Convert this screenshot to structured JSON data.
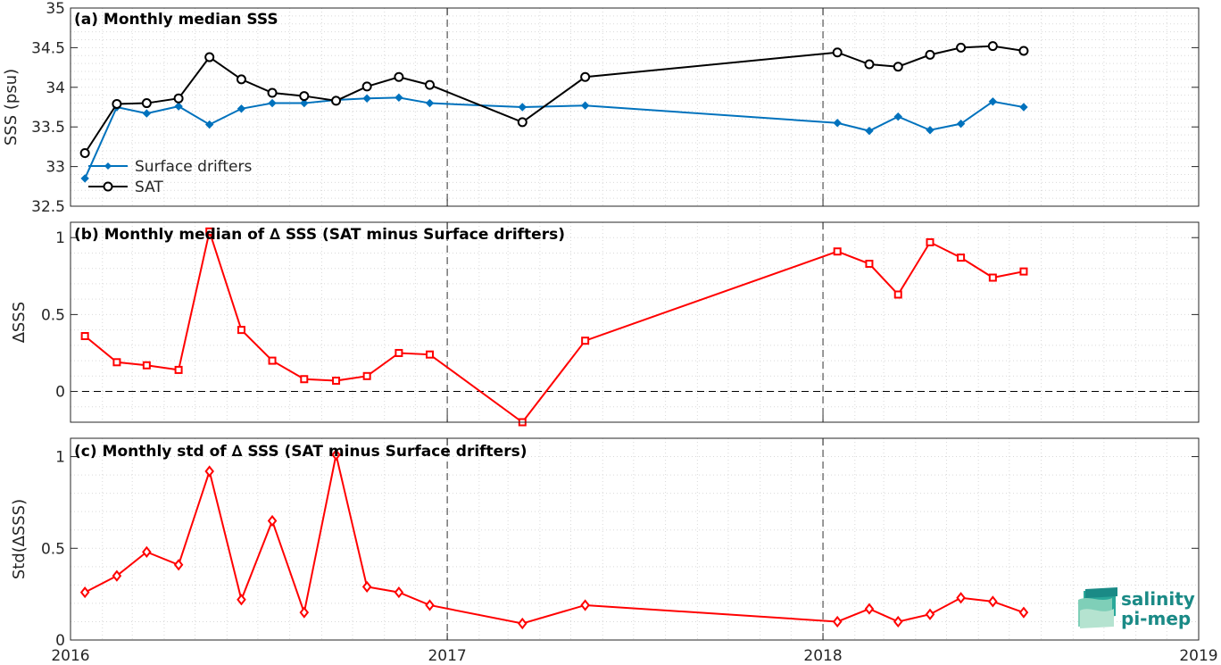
{
  "colors": {
    "drifters": "#0072BD",
    "sat": "#000000",
    "delta": "#FF0000",
    "grid": "#d9d9d9",
    "logo": "#1a8a86"
  },
  "x_axis": {
    "type": "date",
    "range": [
      "2016-01-01",
      "2019-01-01"
    ],
    "tick_labels": [
      "2016",
      "2017",
      "2018",
      "2019"
    ],
    "dashed_verticals": [
      "2017-01-01",
      "2018-01-01"
    ]
  },
  "logo": {
    "line1": "salinity",
    "line2": "pi-mep"
  },
  "chart_data": [
    {
      "type": "line",
      "title": "(a) Monthly median SSS",
      "ylabel": "SSS (psu)",
      "ylim": [
        32.5,
        35
      ],
      "yticks": [
        32.5,
        33,
        33.5,
        34,
        34.5,
        35
      ],
      "ytick_labels": [
        "32.5",
        "33",
        "33.5",
        "34",
        "34.5",
        "35"
      ],
      "grid": true,
      "legend": "bottom-left",
      "x": [
        "2016-01-15",
        "2016-02-15",
        "2016-03-15",
        "2016-04-15",
        "2016-05-15",
        "2016-06-15",
        "2016-07-15",
        "2016-08-15",
        "2016-09-15",
        "2016-10-15",
        "2016-11-15",
        "2016-12-15",
        "2017-03-15",
        "2017-05-15",
        "2018-01-15",
        "2018-02-15",
        "2018-03-15",
        "2018-04-15",
        "2018-05-15",
        "2018-06-15",
        "2018-07-15"
      ],
      "series": [
        {
          "name": "Surface drifters",
          "marker": "diamond",
          "color": "#0072BD",
          "values": [
            32.85,
            33.75,
            33.67,
            33.76,
            33.53,
            33.73,
            33.8,
            33.8,
            33.84,
            33.86,
            33.87,
            33.8,
            33.75,
            33.77,
            33.55,
            33.45,
            33.63,
            33.46,
            33.54,
            33.82,
            33.75
          ]
        },
        {
          "name": "SAT",
          "marker": "circle",
          "color": "#000000",
          "values": [
            33.17,
            33.79,
            33.8,
            33.86,
            34.38,
            34.1,
            33.93,
            33.89,
            33.83,
            34.01,
            34.13,
            34.03,
            33.56,
            34.13,
            34.44,
            34.29,
            34.26,
            34.41,
            34.5,
            34.52,
            34.46
          ]
        }
      ]
    },
    {
      "type": "line",
      "title": "(b) Monthly median of ∆ SSS (SAT minus Surface drifters)",
      "ylabel": "∆SSS",
      "ylim": [
        -0.2,
        1.1
      ],
      "yticks": [
        0,
        0.5,
        1
      ],
      "ytick_labels": [
        "0",
        "0.5",
        "1"
      ],
      "grid": true,
      "zero_line": true,
      "x": [
        "2016-01-15",
        "2016-02-15",
        "2016-03-15",
        "2016-04-15",
        "2016-05-15",
        "2016-06-15",
        "2016-07-15",
        "2016-08-15",
        "2016-09-15",
        "2016-10-15",
        "2016-11-15",
        "2016-12-15",
        "2017-03-15",
        "2017-05-15",
        "2018-01-15",
        "2018-02-15",
        "2018-03-15",
        "2018-04-15",
        "2018-05-15",
        "2018-06-15",
        "2018-07-15"
      ],
      "series": [
        {
          "marker": "square",
          "color": "#FF0000",
          "values": [
            0.36,
            0.19,
            0.17,
            0.14,
            1.04,
            0.4,
            0.2,
            0.08,
            0.07,
            0.1,
            0.25,
            0.24,
            -0.2,
            0.33,
            0.91,
            0.83,
            0.63,
            0.97,
            0.87,
            0.74,
            0.78
          ]
        }
      ]
    },
    {
      "type": "line",
      "title": "(c) Monthly std of ∆ SSS (SAT minus Surface drifters)",
      "ylabel": "Std(∆SSS)",
      "ylim": [
        0,
        1.1
      ],
      "yticks": [
        0,
        0.5,
        1
      ],
      "ytick_labels": [
        "0",
        "0.5",
        "1"
      ],
      "grid": true,
      "x": [
        "2016-01-15",
        "2016-02-15",
        "2016-03-15",
        "2016-04-15",
        "2016-05-15",
        "2016-06-15",
        "2016-07-15",
        "2016-08-15",
        "2016-09-15",
        "2016-10-15",
        "2016-11-15",
        "2016-12-15",
        "2017-03-15",
        "2017-05-15",
        "2018-01-15",
        "2018-02-15",
        "2018-03-15",
        "2018-04-15",
        "2018-05-15",
        "2018-06-15",
        "2018-07-15"
      ],
      "series": [
        {
          "marker": "diamond-open",
          "color": "#FF0000",
          "values": [
            0.26,
            0.35,
            0.48,
            0.41,
            0.92,
            0.22,
            0.65,
            0.15,
            1.01,
            0.29,
            0.26,
            0.19,
            0.09,
            0.19,
            0.1,
            0.17,
            0.1,
            0.14,
            0.23,
            0.21,
            0.15
          ]
        }
      ]
    }
  ]
}
